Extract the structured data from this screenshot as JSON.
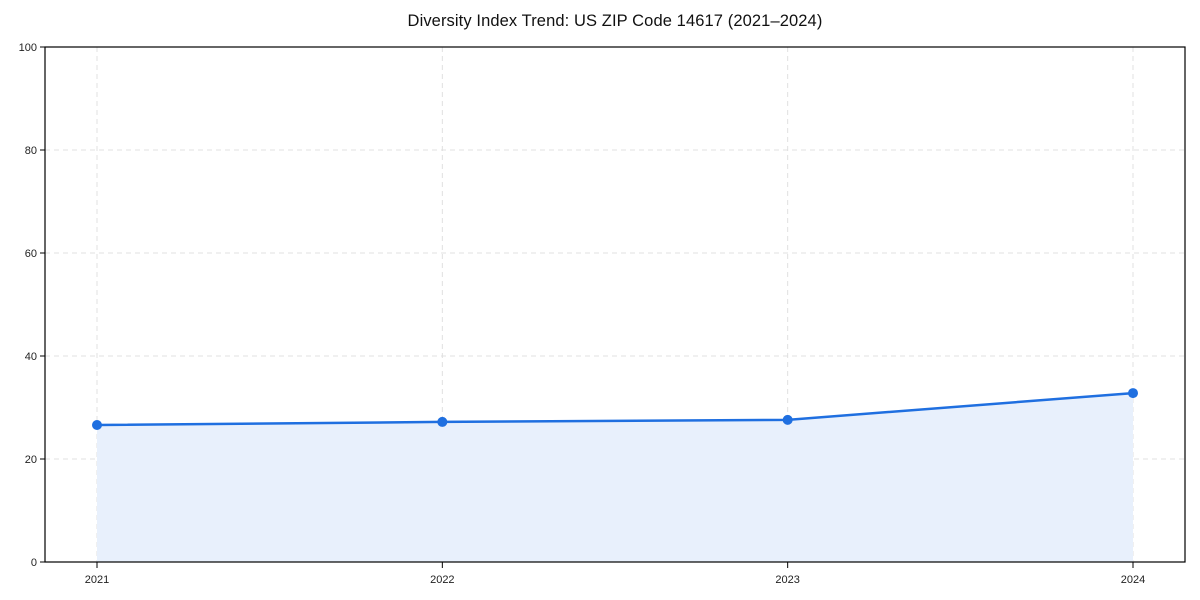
{
  "chart_data": {
    "type": "area",
    "title": "Diversity Index Trend: US ZIP Code 14617 (2021–2024)",
    "categories": [
      "2021",
      "2022",
      "2023",
      "2024"
    ],
    "series": [
      {
        "name": "Diversity Index",
        "values": [
          26.6,
          27.2,
          27.6,
          32.8
        ]
      }
    ],
    "xlabel": "",
    "ylabel": "",
    "ylim": [
      0,
      100
    ],
    "yticks": [
      0,
      20,
      40,
      60,
      80,
      100
    ],
    "grid": "dashed",
    "legend": "none",
    "colors": {
      "line": "#1f6fe0",
      "marker": "#1f6fe0",
      "fill": "#e8f0fc",
      "grid": "#e0e0e0",
      "axis": "#000000",
      "text": "#222222",
      "background": "#ffffff"
    }
  }
}
